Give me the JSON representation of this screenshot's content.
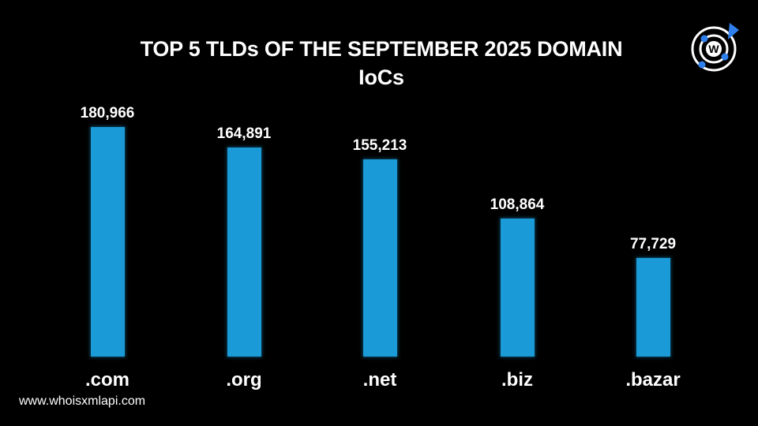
{
  "header": {
    "title_line1": "TOP 5 TLDs OF THE SEPTEMBER 2025 DOMAIN",
    "title_line2": "IoCs",
    "logo_icon": "whoisxmlapi-logo-icon"
  },
  "footer": {
    "url": "www.whoisxmlapi.com"
  },
  "colors": {
    "background": "#000000",
    "bar": "#1a9bd7",
    "text": "#ffffff",
    "logo_accent": "#2f80ed"
  },
  "chart_data": {
    "type": "bar",
    "title": "TOP 5 TLDs OF THE SEPTEMBER 2025 DOMAIN IoCs",
    "categories": [
      ".com",
      ".org",
      ".net",
      ".biz",
      ".bazar"
    ],
    "values": [
      180966,
      164891,
      155213,
      108864,
      77729
    ],
    "value_labels": [
      "180,966",
      "164,891",
      "155,213",
      "108,864",
      "77,729"
    ],
    "xlabel": "",
    "ylabel": "",
    "ylim": [
      0,
      200000
    ],
    "grid": false,
    "legend": null,
    "axes_visible": false
  }
}
